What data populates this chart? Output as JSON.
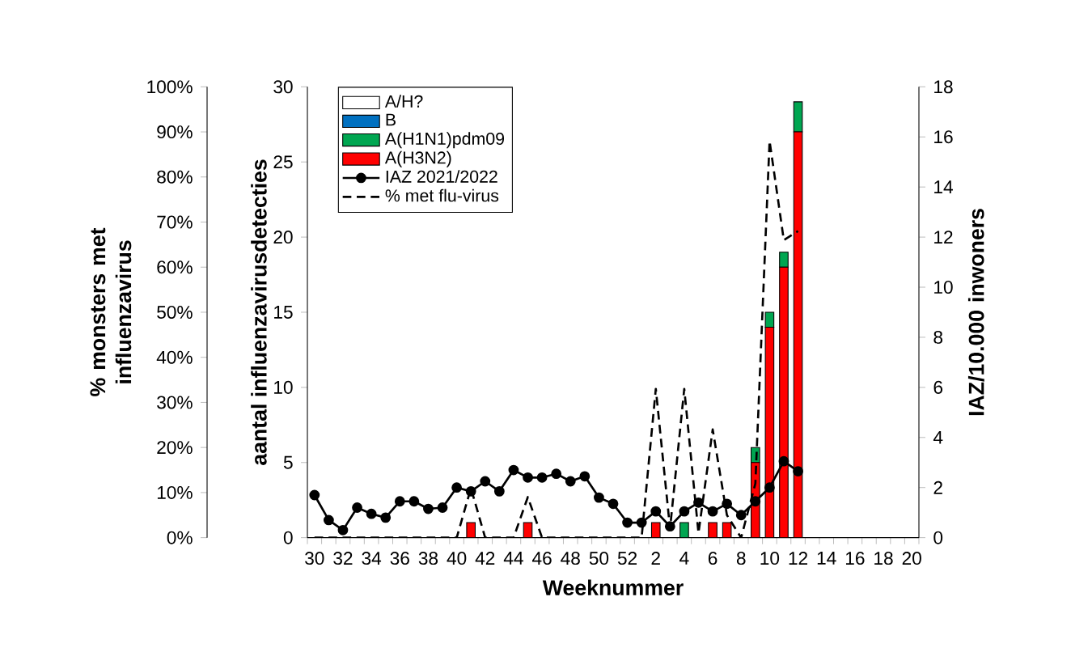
{
  "chart_data": {
    "type": "bar",
    "stacked": true,
    "categories": [
      "30",
      null,
      "32",
      null,
      "34",
      null,
      "36",
      null,
      "38",
      null,
      "40",
      null,
      "42",
      null,
      "44",
      null,
      "46",
      null,
      "48",
      null,
      "50",
      null,
      "52",
      null,
      "2",
      null,
      "4",
      null,
      "6",
      null,
      "8",
      null,
      "10",
      null,
      "12",
      null,
      "14",
      null,
      "16",
      null,
      "18",
      null,
      "20"
    ],
    "xlabel": "Weeknummer",
    "ylabel": "aantal influenzavirusdetecties",
    "y2label": "IAZ/10.000 inwoners",
    "y3label": "% monsters met influenzavirus",
    "ylim": [
      0,
      30
    ],
    "yticks": [
      0,
      5,
      10,
      15,
      20,
      25,
      30
    ],
    "y2lim": [
      0,
      18
    ],
    "y2ticks": [
      0,
      2,
      4,
      6,
      8,
      10,
      12,
      14,
      16,
      18
    ],
    "y3lim": [
      0,
      100
    ],
    "y3ticks": [
      {
        "value": 0,
        "label": "0%"
      },
      {
        "value": 10,
        "label": "10%"
      },
      {
        "value": 20,
        "label": "20%"
      },
      {
        "value": 30,
        "label": "30%"
      },
      {
        "value": 40,
        "label": "40%"
      },
      {
        "value": 50,
        "label": "50%"
      },
      {
        "value": 60,
        "label": "60%"
      },
      {
        "value": 70,
        "label": "70%"
      },
      {
        "value": 80,
        "label": "80%"
      },
      {
        "value": 90,
        "label": "90%"
      },
      {
        "value": 100,
        "label": "100%"
      }
    ],
    "legend": "top left",
    "series": [
      {
        "name": "A(H3N2)",
        "color": "#ff0000",
        "values": [
          0,
          0,
          0,
          0,
          0,
          0,
          0,
          0,
          0,
          0,
          0,
          1,
          0,
          0,
          0,
          1,
          0,
          0,
          0,
          0,
          0,
          0,
          0,
          0,
          1,
          0,
          0,
          0,
          1,
          1,
          0,
          5,
          14,
          18,
          27,
          null,
          null,
          null,
          null,
          null,
          null,
          null,
          null
        ]
      },
      {
        "name": "A(H1N1)pdm09",
        "color": "#00a651",
        "values": [
          0,
          0,
          0,
          0,
          0,
          0,
          0,
          0,
          0,
          0,
          0,
          0,
          0,
          0,
          0,
          0,
          0,
          0,
          0,
          0,
          0,
          0,
          0,
          0,
          0,
          0,
          1,
          0,
          0,
          0,
          0,
          1,
          1,
          1,
          2,
          null,
          null,
          null,
          null,
          null,
          null,
          null,
          null
        ]
      },
      {
        "name": "B",
        "color": "#0070c0",
        "values": [
          0,
          0,
          0,
          0,
          0,
          0,
          0,
          0,
          0,
          0,
          0,
          0,
          0,
          0,
          0,
          0,
          0,
          0,
          0,
          0,
          0,
          0,
          0,
          0,
          0,
          0,
          0,
          0,
          0,
          0,
          0,
          0,
          0,
          0,
          0,
          null,
          null,
          null,
          null,
          null,
          null,
          null,
          null
        ]
      },
      {
        "name": "A/H?",
        "color": "#ffffff",
        "values": [
          0,
          0,
          0,
          0,
          0,
          0,
          0,
          0,
          0,
          0,
          0,
          0,
          0,
          0,
          0,
          0,
          0,
          0,
          0,
          0,
          0,
          0,
          0,
          0,
          0,
          0,
          0,
          0,
          0,
          0,
          0,
          0,
          0,
          0,
          0,
          null,
          null,
          null,
          null,
          null,
          null,
          null,
          null
        ]
      },
      {
        "name": "IAZ 2021/2022",
        "type": "line",
        "axis": "y2",
        "color": "#000000",
        "marker": "circle",
        "line_style": "solid",
        "values": [
          1.7,
          0.7,
          0.3,
          1.2,
          0.95,
          0.8,
          1.45,
          1.45,
          1.15,
          1.2,
          2.0,
          1.85,
          2.25,
          1.85,
          2.7,
          2.4,
          2.4,
          2.55,
          2.25,
          2.45,
          1.6,
          1.35,
          0.6,
          0.6,
          1.05,
          0.45,
          1.05,
          1.4,
          1.05,
          1.35,
          0.9,
          1.45,
          2.0,
          3.05,
          2.65,
          null,
          null,
          null,
          null,
          null,
          null,
          null,
          null
        ]
      },
      {
        "name": "% met flu-virus",
        "type": "line",
        "axis": "y3",
        "color": "#000000",
        "marker": "none",
        "line_style": "dashed",
        "values": [
          0,
          0,
          0,
          0,
          0,
          0,
          0,
          0,
          0,
          0,
          0,
          11,
          0,
          0,
          0,
          9,
          0,
          0,
          0,
          0,
          0,
          0,
          0,
          0,
          33,
          2,
          33,
          1,
          24,
          5,
          0,
          12,
          88,
          66,
          68,
          null,
          null,
          null,
          null,
          null,
          null,
          null,
          null
        ]
      }
    ]
  }
}
